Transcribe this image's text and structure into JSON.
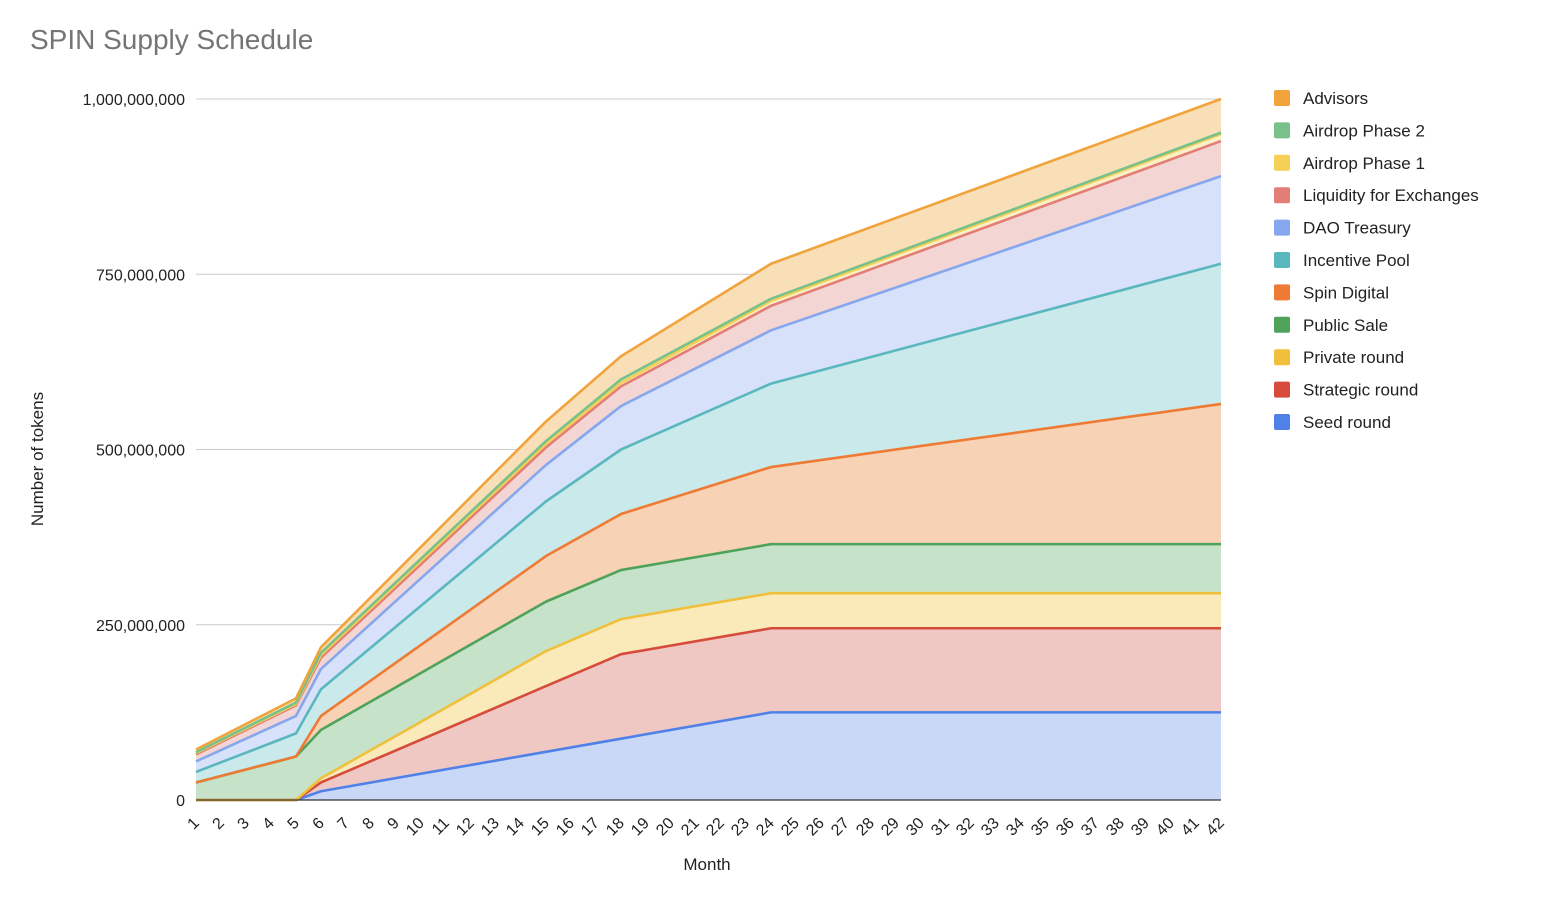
{
  "chart_data": {
    "type": "area",
    "stacked": true,
    "title": "SPIN Supply Schedule",
    "xlabel": "Month",
    "ylabel": "Number of tokens",
    "ylim": [
      0,
      1000000000
    ],
    "yticks": [
      0,
      250000000,
      500000000,
      750000000,
      1000000000
    ],
    "ytick_labels": [
      "0",
      "250,000,000",
      "500,000,000",
      "750,000,000",
      "1,000,000,000"
    ],
    "grid": true,
    "legend_position": "right",
    "categories": [
      "1",
      "2",
      "3",
      "4",
      "5",
      "6",
      "7",
      "8",
      "9",
      "10",
      "11",
      "12",
      "13",
      "14",
      "15",
      "16",
      "17",
      "18",
      "19",
      "20",
      "21",
      "22",
      "23",
      "24",
      "25",
      "26",
      "27",
      "28",
      "29",
      "30",
      "31",
      "32",
      "33",
      "34",
      "35",
      "36",
      "37",
      "38",
      "39",
      "40",
      "41",
      "42"
    ],
    "cumulative_points": {
      "x": [
        1,
        5,
        6,
        15,
        18,
        24,
        42
      ],
      "series_cumulative": {
        "Seed round": [
          0,
          0,
          12500000,
          68750000,
          87500000,
          125000000,
          125000000
        ],
        "Strategic round": [
          0,
          0,
          25000000,
          162500000,
          208000000,
          245000000,
          245000000
        ],
        "Private round": [
          0,
          0,
          31000000,
          212500000,
          258000000,
          295000000,
          295000000
        ],
        "Public Sale": [
          25000000,
          62000000,
          100000000,
          283000000,
          328000000,
          365000000,
          365000000
        ],
        "Spin Digital": [
          25000000,
          62000000,
          120000000,
          348000000,
          408000000,
          475000000,
          565000000
        ],
        "Incentive Pool": [
          40000000,
          95000000,
          158000000,
          426000000,
          500000000,
          594000000,
          765000000
        ],
        "DAO Treasury": [
          55000000,
          120000000,
          187000000,
          478000000,
          562000000,
          670000000,
          890000000
        ],
        "Liquidity for Exchanges": [
          65000000,
          135000000,
          203000000,
          503000000,
          590000000,
          705000000,
          940000000
        ],
        "Airdrop Phase 1": [
          67000000,
          137000000,
          207000000,
          508000000,
          595000000,
          712000000,
          950000000
        ],
        "Airdrop Phase 2": [
          68000000,
          139000000,
          210000000,
          512000000,
          600000000,
          715000000,
          952000000
        ],
        "Advisors": [
          72000000,
          145000000,
          218000000,
          540000000,
          633000000,
          765000000,
          1000000000
        ]
      }
    },
    "series": [
      {
        "name": "Seed round",
        "color": "#4f81e8",
        "fill": "#c9d8f6"
      },
      {
        "name": "Strategic round",
        "color": "#d64b3a",
        "fill": "#f0c8c3"
      },
      {
        "name": "Private round",
        "color": "#f0c03c",
        "fill": "#faeab9"
      },
      {
        "name": "Public Sale",
        "color": "#4ea259",
        "fill": "#c6e3c9"
      },
      {
        "name": "Spin Digital",
        "color": "#ef7a34",
        "fill": "#f8d2b4"
      },
      {
        "name": "Incentive Pool",
        "color": "#5ab7be",
        "fill": "#cae9eb"
      },
      {
        "name": "DAO Treasury",
        "color": "#86a7ee",
        "fill": "#d7e1fa"
      },
      {
        "name": "Liquidity for Exchanges",
        "color": "#e27e76",
        "fill": "#f3d6d4"
      },
      {
        "name": "Airdrop Phase 1",
        "color": "#f5cf56",
        "fill": "#fbefc4"
      },
      {
        "name": "Airdrop Phase 2",
        "color": "#78c18a",
        "fill": "#d3ecd8"
      },
      {
        "name": "Advisors",
        "color": "#f1a33c",
        "fill": "#f8dfb7"
      }
    ],
    "legend_order": [
      "Advisors",
      "Airdrop Phase 2",
      "Airdrop Phase 1",
      "Liquidity for Exchanges",
      "DAO Treasury",
      "Incentive Pool",
      "Spin Digital",
      "Public Sale",
      "Private round",
      "Strategic round",
      "Seed round"
    ]
  }
}
